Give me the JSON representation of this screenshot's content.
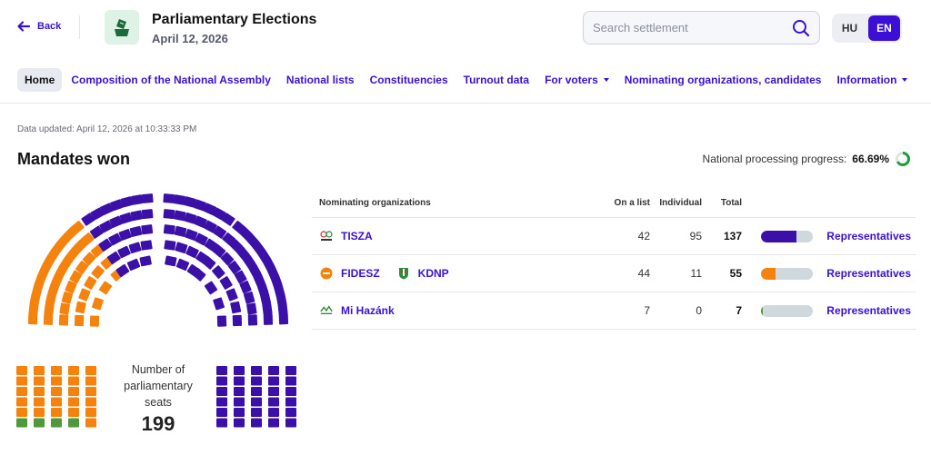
{
  "header": {
    "back_label": "Back",
    "title": "Parliamentary Elections",
    "date": "April 12, 2026",
    "search_placeholder": "Search settlement",
    "lang_hu": "HU",
    "lang_en": "EN"
  },
  "nav": {
    "home": "Home",
    "composition": "Composition of the National Assembly",
    "national_lists": "National lists",
    "constituencies": "Constituencies",
    "turnout": "Turnout data",
    "for_voters": "For voters",
    "nominating": "Nominating organizations, candidates",
    "information": "Information"
  },
  "updated": "Data updated: April 12, 2026 at 10:33:33 PM",
  "section_title": "Mandates won",
  "progress": {
    "label": "National processing progress:",
    "value": "66.69%",
    "fraction": 0.6669,
    "color": "#1e9e3a"
  },
  "hemicycle": {
    "caption": "Number of parliamentary seats",
    "total": "199",
    "colors": {
      "orange": "#f5820c",
      "purple": "#3b10a8",
      "green": "#4e9a3a"
    },
    "seat_counts": {
      "orange": 55,
      "green": 7,
      "purple": 137
    }
  },
  "table": {
    "headers": {
      "org": "Nominating organizations",
      "list": "On a list",
      "individual": "Individual",
      "total": "Total"
    },
    "rows": [
      {
        "names": [
          "TISZA"
        ],
        "logos": [
          "tisza-logo-icon"
        ],
        "on_list": "42",
        "individual": "95",
        "total": "137",
        "share": 0.6884,
        "color": "#3b10a8",
        "link": "Representatives"
      },
      {
        "names": [
          "FIDESZ",
          "KDNP"
        ],
        "logos": [
          "fidesz-logo-icon",
          "kdnp-logo-icon"
        ],
        "on_list": "44",
        "individual": "11",
        "total": "55",
        "share": 0.2764,
        "color": "#f5820c",
        "link": "Representatives"
      },
      {
        "names": [
          "Mi Hazánk"
        ],
        "logos": [
          "mi-hazank-logo-icon"
        ],
        "on_list": "7",
        "individual": "0",
        "total": "7",
        "share": 0.0352,
        "color": "#4e9a3a",
        "link": "Representatives"
      }
    ]
  }
}
